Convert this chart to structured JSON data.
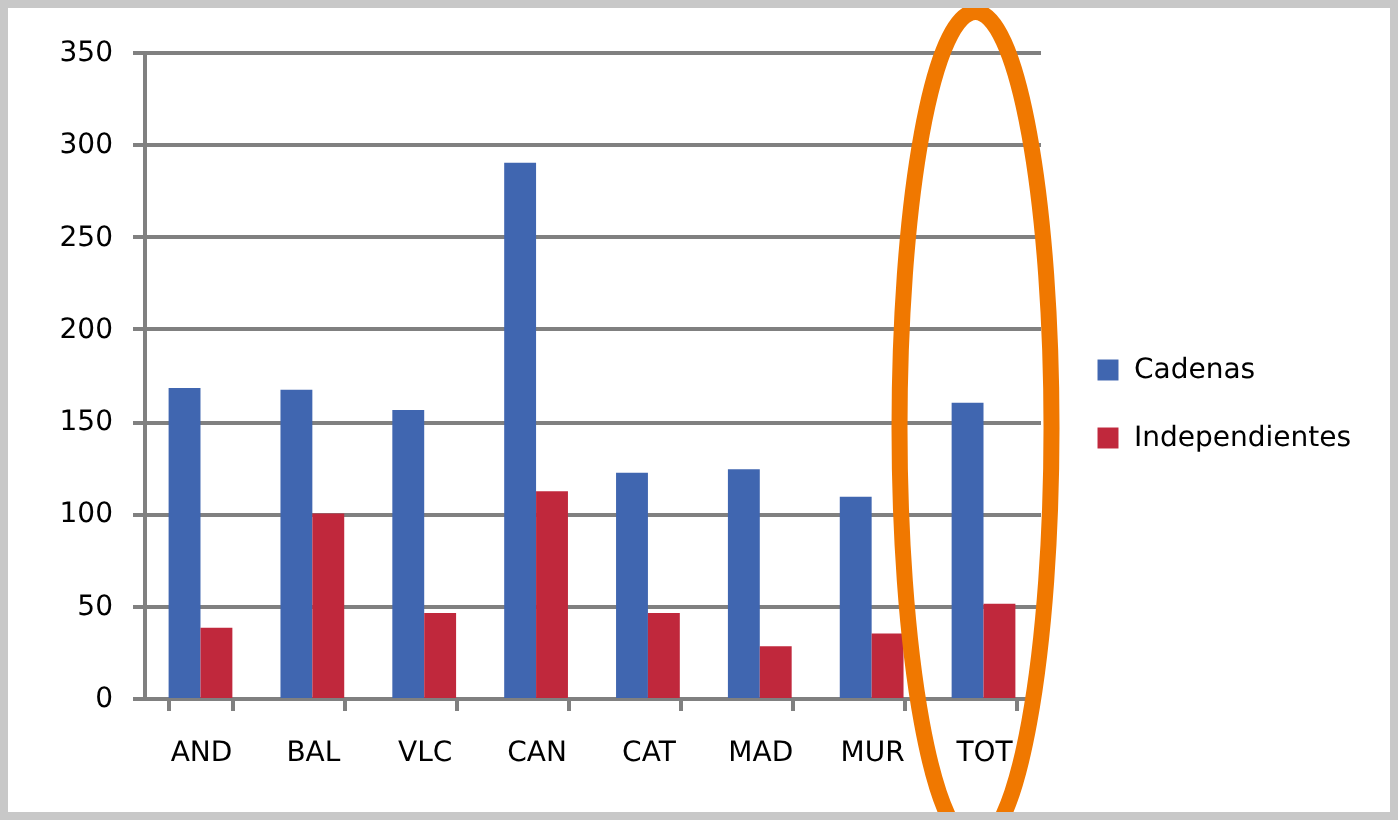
{
  "chart_data": {
    "type": "bar",
    "categories": [
      "AND",
      "BAL",
      "VLC",
      "CAN",
      "CAT",
      "MAD",
      "MUR",
      "TOT"
    ],
    "series": [
      {
        "name": "Cadenas",
        "color": "#4066b0",
        "values": [
          168,
          167,
          156,
          290,
          122,
          124,
          109,
          160
        ]
      },
      {
        "name": "Independientes",
        "color": "#c0283c",
        "values": [
          38,
          100,
          46,
          112,
          46,
          28,
          35,
          51
        ]
      }
    ],
    "ylim": [
      0,
      350
    ],
    "yticks": [
      0,
      50,
      100,
      150,
      200,
      250,
      300,
      350
    ],
    "grid": "y",
    "legend": "right"
  }
}
